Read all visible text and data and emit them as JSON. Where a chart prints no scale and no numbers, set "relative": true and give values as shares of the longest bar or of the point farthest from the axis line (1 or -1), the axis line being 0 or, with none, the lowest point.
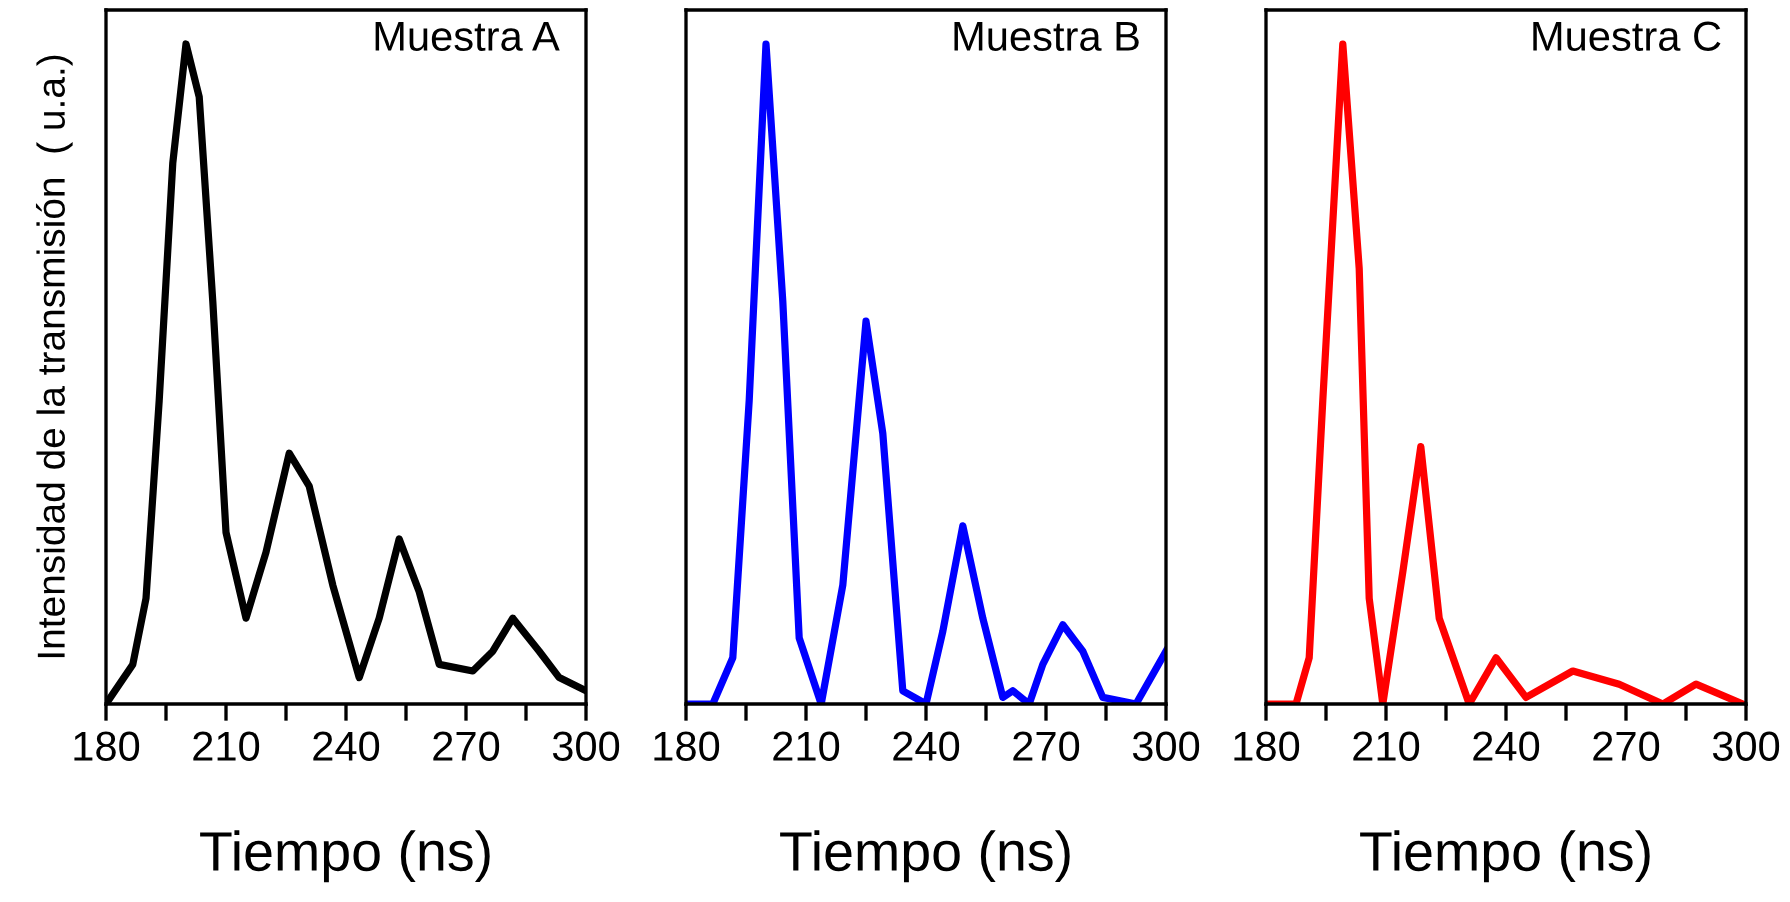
{
  "chart_data": [
    {
      "type": "line",
      "title": "Muestra A",
      "xlabel": "Tiempo (ns)",
      "ylabel": "Intensidad de la transmisión  ( u.a.)",
      "relative": true,
      "xlim": [
        180,
        300
      ],
      "xticks": [
        180,
        {
          "value": 195,
          "label": null
        },
        210,
        {
          "value": 225,
          "label": null
        },
        240,
        {
          "value": 255,
          "label": null
        },
        270,
        {
          "value": 285,
          "label": null
        },
        300
      ],
      "tick_labels": "x",
      "grid": false,
      "series": [
        {
          "color": "#000000",
          "x": [
            180,
            186.7,
            190,
            193.3,
            196.7,
            200,
            203.3,
            206.7,
            210,
            215,
            220,
            225.8,
            230.8,
            236.7,
            243.3,
            248.3,
            253.3,
            258.3,
            263.3,
            271.7,
            276.7,
            281.7,
            288.3,
            293.3,
            300
          ],
          "values": [
            0,
            0.06,
            0.16,
            0.46,
            0.82,
            1.0,
            0.92,
            0.61,
            0.26,
            0.13,
            0.23,
            0.38,
            0.33,
            0.18,
            0.04,
            0.13,
            0.25,
            0.17,
            0.06,
            0.05,
            0.08,
            0.13,
            0.08,
            0.04,
            0.02
          ]
        }
      ]
    },
    {
      "type": "line",
      "title": "Muestra B",
      "xlabel": "Tiempo (ns)",
      "relative": true,
      "xlim": [
        180,
        300
      ],
      "xticks": [
        180,
        {
          "value": 195,
          "label": null
        },
        210,
        {
          "value": 225,
          "label": null
        },
        240,
        {
          "value": 255,
          "label": null
        },
        270,
        {
          "value": 285,
          "label": null
        },
        300
      ],
      "tick_labels": "x",
      "grid": false,
      "series": [
        {
          "color": "#0000ff",
          "x": [
            180,
            186.7,
            191.7,
            195.8,
            200,
            204.2,
            208.3,
            213.8,
            219.2,
            225,
            229.2,
            234.2,
            240,
            244.2,
            249.2,
            254.2,
            259.2,
            261.7,
            265.8,
            269.2,
            274.2,
            279.2,
            284.2,
            292.5,
            300
          ],
          "values": [
            0,
            0,
            0.07,
            0.46,
            1.0,
            0.61,
            0.1,
            0,
            0.18,
            0.58,
            0.41,
            0.02,
            0,
            0.11,
            0.27,
            0.13,
            0.01,
            0.02,
            0,
            0.06,
            0.12,
            0.08,
            0.01,
            0,
            0.08
          ]
        }
      ]
    },
    {
      "type": "line",
      "title": "Muestra C",
      "xlabel": "Tiempo (ns)",
      "relative": true,
      "xlim": [
        180,
        300
      ],
      "xticks": [
        180,
        {
          "value": 195,
          "label": null
        },
        210,
        {
          "value": 225,
          "label": null
        },
        240,
        {
          "value": 255,
          "label": null
        },
        270,
        {
          "value": 285,
          "label": null
        },
        300
      ],
      "tick_labels": "x",
      "grid": false,
      "series": [
        {
          "color": "#ff0000",
          "x": [
            180,
            187.5,
            190.8,
            194.2,
            199.2,
            203.3,
            205.8,
            209.2,
            214.2,
            218.7,
            223.3,
            230.8,
            237.5,
            245,
            256.7,
            268.3,
            279.2,
            287.5,
            299.2
          ],
          "values": [
            0,
            0,
            0.07,
            0.46,
            1.0,
            0.66,
            0.16,
            0,
            0.2,
            0.39,
            0.13,
            0,
            0.07,
            0.01,
            0.05,
            0.03,
            0,
            0.03,
            0
          ]
        }
      ]
    }
  ]
}
